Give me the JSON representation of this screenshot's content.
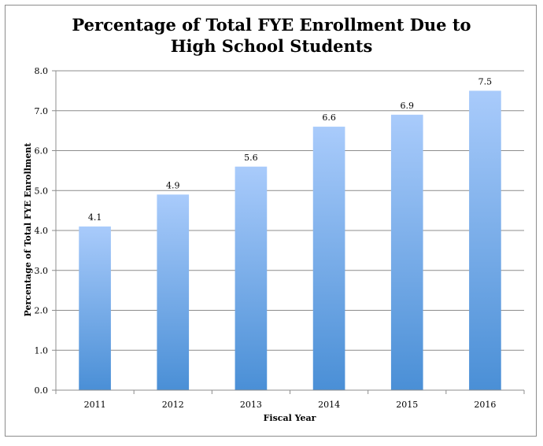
{
  "chart_data": {
    "type": "bar",
    "title": "Percentage of Total FYE Enrollment Due to High School Students",
    "xlabel": "Fiscal Year",
    "ylabel": "Percentage of Total FYE Enrollment",
    "categories": [
      "2011",
      "2012",
      "2013",
      "2014",
      "2015",
      "2016"
    ],
    "values": [
      4.1,
      4.9,
      5.6,
      6.6,
      6.9,
      7.5
    ],
    "data_labels": [
      "4.1",
      "4.9",
      "5.6",
      "6.6",
      "6.9",
      "7.5"
    ],
    "ylim": [
      0,
      8
    ],
    "yticks": [
      "0.0",
      "1.0",
      "2.0",
      "3.0",
      "4.0",
      "5.0",
      "6.0",
      "7.0",
      "8.0"
    ],
    "grid": true,
    "legend": "none",
    "colors": {
      "bar_top": "#a9cbfb",
      "bar_bottom": "#4a8fd6",
      "grid": "#8c8c8c"
    }
  }
}
